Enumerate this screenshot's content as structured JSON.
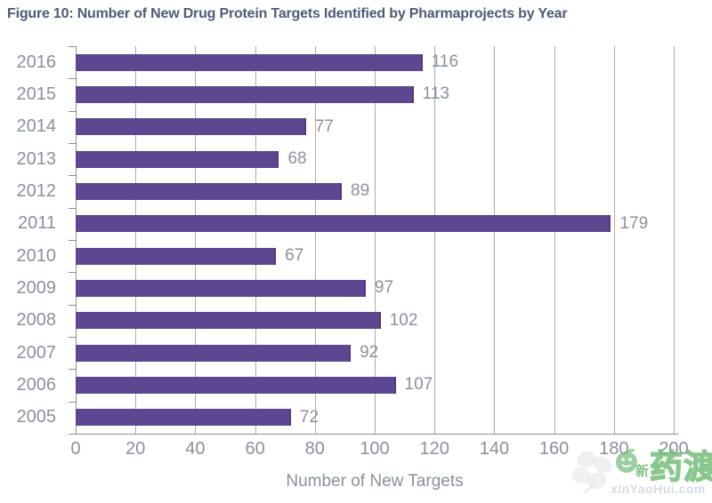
{
  "figure": {
    "title": "Figure 10: Number of New Drug Protein Targets Identified by Pharmaprojects by Year"
  },
  "chart_data": {
    "type": "bar",
    "orientation": "horizontal",
    "title": "Figure 10: Number of New Drug Protein Targets Identified by Pharmaprojects by Year",
    "categories": [
      "2016",
      "2015",
      "2014",
      "2013",
      "2012",
      "2011",
      "2010",
      "2009",
      "2008",
      "2007",
      "2006",
      "2005"
    ],
    "values": [
      116,
      113,
      77,
      68,
      89,
      179,
      67,
      97,
      102,
      92,
      107,
      72
    ],
    "xlabel": "Number of New Targets",
    "ylabel": "",
    "xlim": [
      0,
      200
    ],
    "xticks": [
      0,
      20,
      40,
      60,
      80,
      100,
      120,
      140,
      160,
      180,
      200
    ],
    "grid": true,
    "legend": "none",
    "bar_color": "#5e4791",
    "label_color": "#8b909c"
  },
  "watermark": {
    "cn_small": "新",
    "cn_large": "药渡",
    "domain": "xinYaoHui.com",
    "green": "#6eb973"
  }
}
